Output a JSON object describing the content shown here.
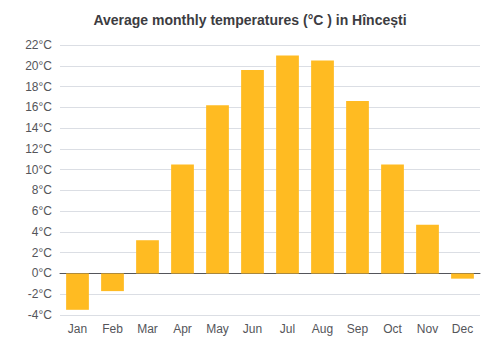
{
  "chart_data": {
    "type": "bar",
    "title": "Average monthly temperatures (°C ) in Hîncești",
    "categories": [
      "Jan",
      "Feb",
      "Mar",
      "Apr",
      "May",
      "Jun",
      "Jul",
      "Aug",
      "Sep",
      "Oct",
      "Nov",
      "Dec"
    ],
    "values": [
      -3.5,
      -1.7,
      3.2,
      10.5,
      16.2,
      19.6,
      21.0,
      20.5,
      16.6,
      10.5,
      4.7,
      -0.5
    ],
    "color": "#FFBB22",
    "ylim": [
      -4,
      22
    ],
    "yticks": [
      {
        "value": -4,
        "label": "-4°C"
      },
      {
        "value": -2,
        "label": "-2°C"
      },
      {
        "value": 0,
        "label": "0°C"
      },
      {
        "value": 2,
        "label": "2°C"
      },
      {
        "value": 4,
        "label": "4°C"
      },
      {
        "value": 6,
        "label": "6°C"
      },
      {
        "value": 8,
        "label": "8°C"
      },
      {
        "value": 10,
        "label": "10°C"
      },
      {
        "value": 12,
        "label": "12°C"
      },
      {
        "value": 14,
        "label": "14°C"
      },
      {
        "value": 16,
        "label": "16°C"
      },
      {
        "value": 18,
        "label": "18°C"
      },
      {
        "value": 20,
        "label": "20°C"
      },
      {
        "value": 22,
        "label": "22°C"
      }
    ],
    "grid": true
  }
}
